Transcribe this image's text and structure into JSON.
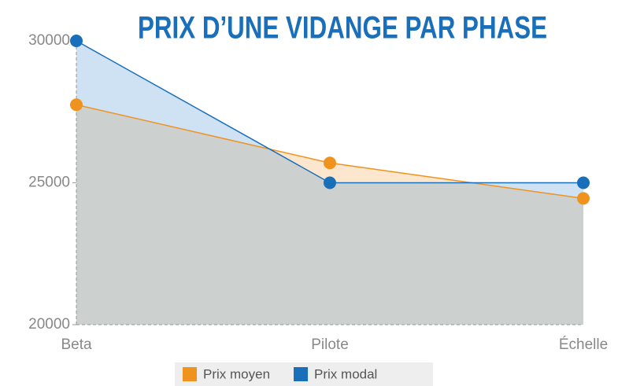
{
  "chart_data": {
    "type": "area",
    "title": "PRIX D’UNE VIDANGE PAR PHASE",
    "categories": [
      "Beta",
      "Pilote",
      "Échelle"
    ],
    "series": [
      {
        "name": "Prix moyen",
        "color": "#f0921e",
        "values": [
          27750,
          25700,
          24450
        ]
      },
      {
        "name": "Prix modal",
        "color": "#1a6fba",
        "values": [
          30000,
          25000,
          25000
        ]
      }
    ],
    "ylim": [
      20000,
      30000
    ],
    "yticks": [
      20000,
      25000,
      30000
    ],
    "legend": "bottom"
  }
}
